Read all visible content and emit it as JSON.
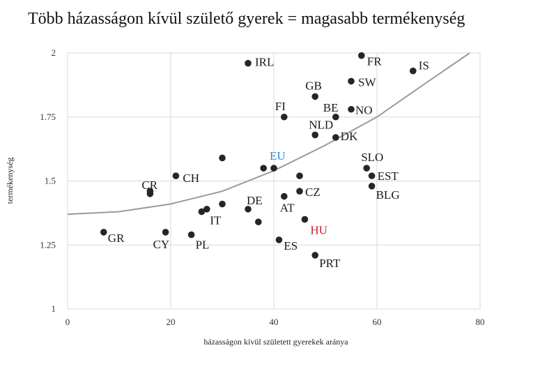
{
  "chart_data": {
    "type": "scatter",
    "title": "Több házasságon kívül születő gyerek = magasabb termékenység",
    "xlabel": "házasságon kívül született gyerekek aránya",
    "ylabel": "termékenység",
    "xlim": [
      0,
      80
    ],
    "ylim": [
      1,
      2
    ],
    "xticks": [
      0,
      20,
      40,
      60,
      80
    ],
    "yticks": [
      1,
      1.25,
      1.5,
      1.75,
      2
    ],
    "ytick_labels": [
      "1",
      "1.25",
      "1.5",
      "1.75",
      "2"
    ],
    "grid": true,
    "trendline": {
      "type": "quadratic",
      "x": [
        0,
        10,
        20,
        30,
        40,
        50,
        60,
        70,
        78
      ],
      "y": [
        1.37,
        1.38,
        1.41,
        1.46,
        1.54,
        1.64,
        1.75,
        1.89,
        2.0
      ]
    },
    "points": [
      {
        "label": "IRL",
        "x": 35,
        "y": 1.96
      },
      {
        "label": "FR",
        "x": 57,
        "y": 1.99
      },
      {
        "label": "IS",
        "x": 67,
        "y": 1.93
      },
      {
        "label": "SW",
        "x": 55,
        "y": 1.89
      },
      {
        "label": "GB",
        "x": 48,
        "y": 1.83
      },
      {
        "label": "FI",
        "x": 42,
        "y": 1.75
      },
      {
        "label": "BE",
        "x": 52,
        "y": 1.75
      },
      {
        "label": "NO",
        "x": 55,
        "y": 1.78
      },
      {
        "label": "NLD",
        "x": 48,
        "y": 1.68
      },
      {
        "label": "DK",
        "x": 52,
        "y": 1.67
      },
      {
        "label": "EU",
        "x": 40,
        "y": 1.55,
        "color": "#2a8fd8"
      },
      {
        "label": "",
        "x": 38,
        "y": 1.55
      },
      {
        "label": "",
        "x": 30,
        "y": 1.59
      },
      {
        "label": "",
        "x": 45,
        "y": 1.52
      },
      {
        "label": "SLO",
        "x": 58,
        "y": 1.55
      },
      {
        "label": "EST",
        "x": 59,
        "y": 1.52
      },
      {
        "label": "BLG",
        "x": 59,
        "y": 1.48
      },
      {
        "label": "CR",
        "x": 16,
        "y": 1.46
      },
      {
        "label": "",
        "x": 16,
        "y": 1.45
      },
      {
        "label": "CH",
        "x": 21,
        "y": 1.52
      },
      {
        "label": "CZ",
        "x": 45,
        "y": 1.46
      },
      {
        "label": "AT",
        "x": 42,
        "y": 1.44
      },
      {
        "label": "DE",
        "x": 35,
        "y": 1.39
      },
      {
        "label": "",
        "x": 30,
        "y": 1.41
      },
      {
        "label": "",
        "x": 27,
        "y": 1.39
      },
      {
        "label": "IT",
        "x": 26,
        "y": 1.38
      },
      {
        "label": "",
        "x": 37,
        "y": 1.34
      },
      {
        "label": "HU",
        "x": 46,
        "y": 1.35,
        "color": "#d0202a"
      },
      {
        "label": "GR",
        "x": 7,
        "y": 1.3
      },
      {
        "label": "CY",
        "x": 19,
        "y": 1.3
      },
      {
        "label": "PL",
        "x": 24,
        "y": 1.29
      },
      {
        "label": "ES",
        "x": 41,
        "y": 1.27
      },
      {
        "label": "PRT",
        "x": 48,
        "y": 1.21
      }
    ]
  }
}
